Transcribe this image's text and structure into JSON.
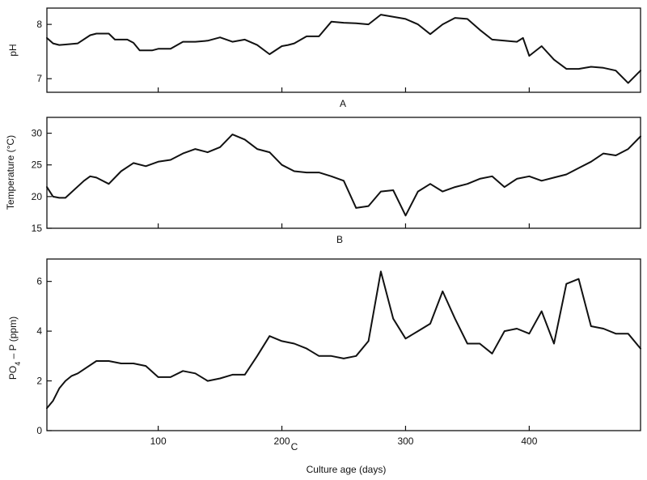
{
  "chart_data": [
    {
      "type": "line",
      "panel_label": "A",
      "ylabel": "pH",
      "xlim": [
        10,
        490
      ],
      "ylim": [
        6.75,
        8.3
      ],
      "yticks": [
        7,
        8
      ],
      "ytick_labels": [
        "7",
        "8"
      ],
      "xticks": [
        100,
        200,
        300,
        400
      ],
      "show_xtick_labels": false,
      "grid": false,
      "series": [
        {
          "x": [
            10,
            15,
            20,
            25,
            35,
            45,
            50,
            60,
            65,
            75,
            80,
            85,
            95,
            100,
            110,
            120,
            130,
            140,
            150,
            160,
            170,
            180,
            190,
            200,
            205,
            210,
            220,
            230,
            240,
            250,
            260,
            270,
            280,
            300,
            310,
            320,
            330,
            340,
            350,
            360,
            370,
            380,
            390,
            395,
            400,
            410,
            420,
            430,
            440,
            450,
            460,
            470,
            480,
            490
          ],
          "y": [
            7.75,
            7.65,
            7.62,
            7.63,
            7.65,
            7.8,
            7.83,
            7.83,
            7.72,
            7.72,
            7.66,
            7.52,
            7.52,
            7.55,
            7.55,
            7.68,
            7.68,
            7.7,
            7.76,
            7.68,
            7.72,
            7.62,
            7.45,
            7.6,
            7.62,
            7.65,
            7.78,
            7.78,
            8.05,
            8.03,
            8.02,
            8.0,
            8.18,
            8.1,
            8.0,
            7.82,
            8.0,
            8.12,
            8.1,
            7.9,
            7.72,
            7.7,
            7.68,
            7.75,
            7.42,
            7.6,
            7.35,
            7.18,
            7.18,
            7.22,
            7.2,
            7.15,
            6.92,
            7.15
          ]
        }
      ]
    },
    {
      "type": "line",
      "panel_label": "B",
      "ylabel": "Temperature (°C)",
      "xlim": [
        10,
        490
      ],
      "ylim": [
        15,
        32.5
      ],
      "yticks": [
        15,
        20,
        25,
        30
      ],
      "ytick_labels": [
        "15",
        "20",
        "25",
        "30"
      ],
      "xticks": [
        100,
        200,
        300,
        400
      ],
      "show_xtick_labels": false,
      "grid": false,
      "series": [
        {
          "x": [
            10,
            15,
            20,
            25,
            40,
            45,
            50,
            60,
            70,
            80,
            90,
            100,
            110,
            120,
            130,
            140,
            150,
            160,
            170,
            180,
            190,
            200,
            210,
            220,
            230,
            240,
            250,
            260,
            270,
            280,
            290,
            300,
            310,
            320,
            330,
            340,
            350,
            360,
            370,
            380,
            390,
            400,
            410,
            420,
            430,
            440,
            450,
            460,
            470,
            480,
            490
          ],
          "y": [
            21.5,
            20.0,
            19.8,
            19.8,
            22.5,
            23.2,
            23.0,
            22.0,
            24.0,
            25.3,
            24.8,
            25.5,
            25.8,
            26.8,
            27.5,
            27.0,
            27.8,
            29.8,
            29.0,
            27.5,
            27.0,
            25.0,
            24.0,
            23.8,
            23.8,
            23.2,
            22.5,
            18.2,
            18.5,
            20.8,
            21.0,
            17.0,
            20.8,
            22.0,
            20.8,
            21.5,
            22.0,
            22.8,
            23.2,
            21.5,
            22.8,
            23.2,
            22.5,
            23.0,
            23.5,
            24.5,
            25.5,
            26.8,
            26.5,
            27.5,
            29.5
          ]
        }
      ]
    },
    {
      "type": "line",
      "panel_label": "C",
      "ylabel": "PO4 – P (ppm)",
      "ylabel_main": "PO",
      "ylabel_sub": "4",
      "ylabel_rest": " – P (ppm)",
      "xlabel": "Culture age (days)",
      "xlim": [
        10,
        490
      ],
      "ylim": [
        0,
        6.9
      ],
      "yticks": [
        0,
        2,
        4,
        6
      ],
      "ytick_labels": [
        "0",
        "2",
        "4",
        "6"
      ],
      "xticks": [
        100,
        200,
        300,
        400
      ],
      "xtick_labels": [
        "100",
        "200",
        "300",
        "400"
      ],
      "show_xtick_labels": true,
      "grid": false,
      "series": [
        {
          "x": [
            10,
            15,
            20,
            25,
            30,
            35,
            50,
            60,
            70,
            80,
            90,
            100,
            110,
            120,
            130,
            140,
            150,
            160,
            170,
            180,
            190,
            200,
            210,
            220,
            230,
            240,
            250,
            260,
            270,
            280,
            290,
            300,
            310,
            320,
            330,
            340,
            350,
            360,
            370,
            380,
            390,
            400,
            410,
            420,
            430,
            440,
            450,
            460,
            470,
            480,
            490
          ],
          "y": [
            0.9,
            1.2,
            1.7,
            2.0,
            2.2,
            2.3,
            2.8,
            2.8,
            2.7,
            2.7,
            2.6,
            2.15,
            2.15,
            2.4,
            2.3,
            2.0,
            2.1,
            2.25,
            2.25,
            3.0,
            3.8,
            3.6,
            3.5,
            3.3,
            3.0,
            3.0,
            2.9,
            3.0,
            3.6,
            6.4,
            4.5,
            3.7,
            4.0,
            4.3,
            5.6,
            4.5,
            3.5,
            3.5,
            3.1,
            4.0,
            4.1,
            3.9,
            4.8,
            3.5,
            5.9,
            6.1,
            4.2,
            4.1,
            3.9,
            3.9,
            3.3
          ]
        }
      ]
    }
  ]
}
